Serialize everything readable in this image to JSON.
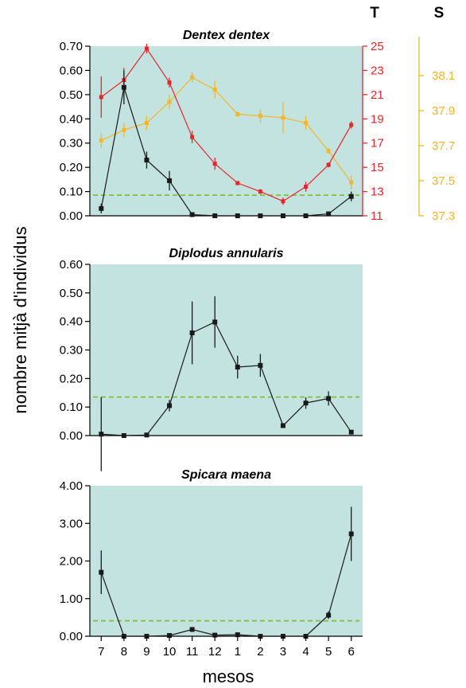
{
  "figure": {
    "ylabel": "nombre mitjà d'individus",
    "xlabel": "mesos",
    "months": [
      "7",
      "8",
      "9",
      "10",
      "11",
      "12",
      "1",
      "2",
      "3",
      "4",
      "5",
      "6"
    ]
  },
  "colors": {
    "panel_bg": "#c2e3df",
    "fish": "#1a1a1a",
    "temperature": "#e8262a",
    "salinity": "#f7b52a",
    "mean_line": "#7fbf3f",
    "T_header": "#e0195a"
  },
  "chart_data": [
    {
      "type": "line",
      "title": "Dentex dentex",
      "categories": [
        "7",
        "8",
        "9",
        "10",
        "11",
        "12",
        "1",
        "2",
        "3",
        "4",
        "5",
        "6"
      ],
      "ylim": [
        0,
        0.7
      ],
      "yticks": [
        "0.00",
        "0.10",
        "0.20",
        "0.30",
        "0.40",
        "0.50",
        "0.60",
        "0.70"
      ],
      "mean_line": 0.085,
      "series": [
        {
          "values": [
            0.03,
            0.53,
            0.23,
            0.145,
            0.005,
            0.0,
            0.0,
            0.0,
            0.0,
            0.0,
            0.008,
            0.08
          ],
          "errors": [
            0.02,
            0.07,
            0.035,
            0.04,
            0.004,
            0.002,
            0.002,
            0.002,
            0.002,
            0.002,
            0.004,
            0.02
          ]
        }
      ],
      "temperature": {
        "label": "T",
        "ylim": [
          11,
          25
        ],
        "yticks": [
          "11",
          "13",
          "15",
          "17",
          "19",
          "21",
          "23",
          "25"
        ],
        "values": [
          20.8,
          22.2,
          24.8,
          22.0,
          17.5,
          15.3,
          13.7,
          13.0,
          12.2,
          13.4,
          15.2,
          18.5
        ],
        "errors": [
          1.7,
          1.0,
          0.4,
          0.4,
          0.5,
          0.5,
          0.15,
          0.2,
          0.3,
          0.4,
          0.2,
          0.3
        ]
      },
      "salinity": {
        "label": "S",
        "ylim": [
          37.3,
          38.2
        ],
        "yticks": [
          "37.3",
          "37.5",
          "37.7",
          "37.9",
          "38.1"
        ],
        "values": [
          37.73,
          37.79,
          37.83,
          37.95,
          38.09,
          38.02,
          37.88,
          37.87,
          37.86,
          37.83,
          37.67,
          37.49
        ],
        "errors": [
          0.04,
          0.04,
          0.04,
          0.04,
          0.03,
          0.05,
          0.015,
          0.04,
          0.09,
          0.04,
          0.015,
          0.04
        ]
      }
    },
    {
      "type": "line",
      "title": "Diplodus annularis",
      "categories": [
        "7",
        "8",
        "9",
        "10",
        "11",
        "12",
        "1",
        "2",
        "3",
        "4",
        "5",
        "6"
      ],
      "ylim": [
        0,
        0.6
      ],
      "yticks": [
        "0.00",
        "0.10",
        "0.20",
        "0.30",
        "0.40",
        "0.50",
        "0.60"
      ],
      "mean_line": 0.135,
      "series": [
        {
          "values": [
            0.005,
            0.0,
            0.002,
            0.105,
            0.36,
            0.398,
            0.24,
            0.246,
            0.035,
            0.114,
            0.13,
            0.012
          ],
          "errors": [
            0.13,
            0.002,
            0.003,
            0.02,
            0.11,
            0.09,
            0.04,
            0.04,
            0.008,
            0.02,
            0.025,
            0.004
          ]
        }
      ]
    },
    {
      "type": "line",
      "title": "Spicara maena",
      "categories": [
        "7",
        "8",
        "9",
        "10",
        "11",
        "12",
        "1",
        "2",
        "3",
        "4",
        "5",
        "6"
      ],
      "ylim": [
        0,
        4
      ],
      "yticks": [
        "0.00",
        "1.00",
        "2.00",
        "3.00",
        "4.00"
      ],
      "mean_line": 0.41,
      "series": [
        {
          "values": [
            1.7,
            0.0,
            0.0,
            0.02,
            0.18,
            0.03,
            0.04,
            0.0,
            0.0,
            0.0,
            0.56,
            2.72
          ],
          "errors": [
            0.58,
            0.01,
            0.01,
            0.01,
            0.02,
            0.02,
            0.02,
            0.01,
            0.01,
            0.01,
            0.1,
            0.72
          ]
        }
      ]
    }
  ]
}
